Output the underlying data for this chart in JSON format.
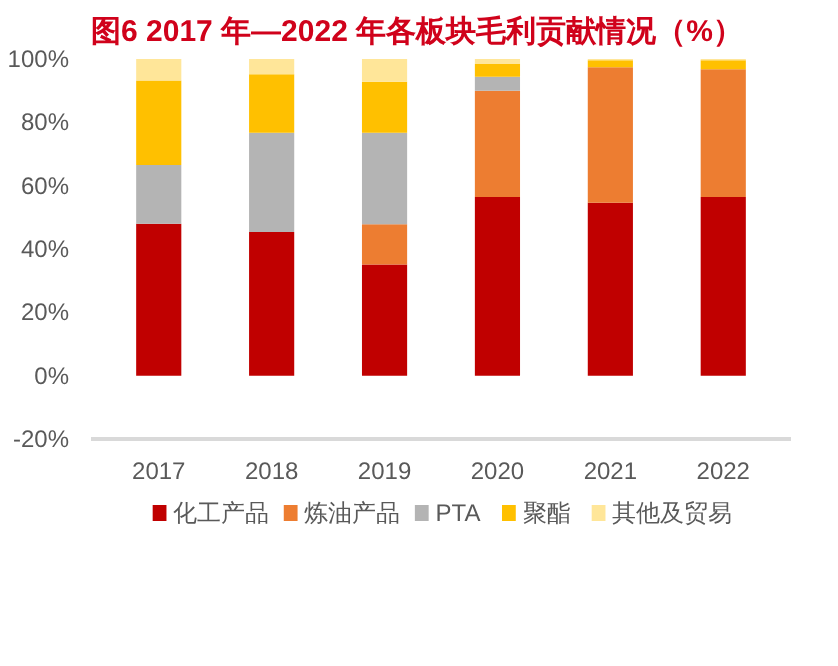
{
  "chart_data": {
    "type": "bar",
    "title": "图6   2017 年—2022 年各板块毛利贡献情况（%）",
    "stacked": true,
    "categories": [
      "2017",
      "2018",
      "2019",
      "2020",
      "2021",
      "2022"
    ],
    "series": [
      {
        "name": "化工产品",
        "color": "#c00000",
        "values": [
          48,
          45.4,
          35.1,
          56.4,
          54.6,
          56.4
        ]
      },
      {
        "name": "炼油产品",
        "color": "#ed7d31",
        "values": [
          0,
          0,
          12.7,
          33.6,
          42.8,
          40.4
        ]
      },
      {
        "name": "PTA",
        "color": "#b4b4b4",
        "values": [
          18.5,
          31.3,
          28.9,
          4.4,
          null,
          null
        ]
      },
      {
        "name": "聚酯",
        "color": "#ffc000",
        "values": [
          26.7,
          18.5,
          16.1,
          4,
          2.2,
          2.8
        ]
      },
      {
        "name": "其他及贸易",
        "color": "#ffe699",
        "values": [
          6.8,
          4.8,
          7.2,
          1.6,
          0.4,
          0.4
        ]
      }
    ],
    "ylim": [
      -20,
      100
    ],
    "yticks": [
      {
        "value": -20,
        "label": "-20%"
      },
      {
        "value": 0,
        "label": "0%"
      },
      {
        "value": 20,
        "label": "20%"
      },
      {
        "value": 40,
        "label": "40%"
      },
      {
        "value": 60,
        "label": "60%"
      },
      {
        "value": 80,
        "label": "80%"
      },
      {
        "value": 100,
        "label": "100%"
      }
    ],
    "grid": false,
    "legend": "bottom"
  }
}
